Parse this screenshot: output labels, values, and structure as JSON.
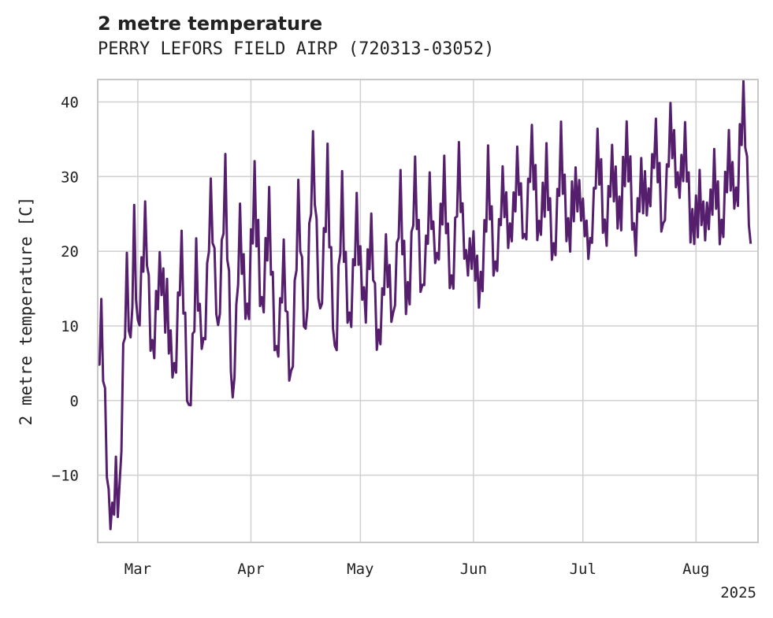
{
  "chart_data": {
    "type": "line",
    "title": "2 metre temperature",
    "subtitle": "PERRY LEFORS FIELD AIRP (720313-03052)",
    "ylabel": "2 metre temperature [C]",
    "xlabel": "",
    "x_range": [
      "2025-02-18",
      "2025-08-18"
    ],
    "ylim": [
      -19,
      43
    ],
    "yticks": [
      -10,
      0,
      10,
      20,
      30,
      40
    ],
    "xticks": [
      {
        "date": "2025-03-01",
        "label": "Mar"
      },
      {
        "date": "2025-04-01",
        "label": "Apr"
      },
      {
        "date": "2025-05-01",
        "label": "May"
      },
      {
        "date": "2025-06-01",
        "label": "Jun"
      },
      {
        "date": "2025-07-01",
        "label": "Jul"
      },
      {
        "date": "2025-08-01",
        "label": "Aug"
      }
    ],
    "year_label": "2025",
    "grid": true,
    "line_color": "#561f6e",
    "series": [
      {
        "x": [
          "2025-02-18",
          "2025-02-19",
          "2025-02-20",
          "2025-02-21",
          "2025-02-22",
          "2025-02-23",
          "2025-02-24",
          "2025-02-25",
          "2025-02-26",
          "2025-02-27",
          "2025-02-28",
          "2025-03-01",
          "2025-03-03",
          "2025-03-05",
          "2025-03-07",
          "2025-03-09",
          "2025-03-11",
          "2025-03-13",
          "2025-03-15",
          "2025-03-17",
          "2025-03-19",
          "2025-03-21",
          "2025-03-23",
          "2025-03-25",
          "2025-03-27",
          "2025-03-29",
          "2025-03-31",
          "2025-04-02",
          "2025-04-04",
          "2025-04-06",
          "2025-04-08",
          "2025-04-10",
          "2025-04-12",
          "2025-04-14",
          "2025-04-16",
          "2025-04-18",
          "2025-04-20",
          "2025-04-22",
          "2025-04-24",
          "2025-04-26",
          "2025-04-28",
          "2025-04-30",
          "2025-05-02",
          "2025-05-04",
          "2025-05-06",
          "2025-05-08",
          "2025-05-10",
          "2025-05-12",
          "2025-05-14",
          "2025-05-16",
          "2025-05-18",
          "2025-05-20",
          "2025-05-22",
          "2025-05-24",
          "2025-05-26",
          "2025-05-28",
          "2025-05-30",
          "2025-06-01",
          "2025-06-03",
          "2025-06-05",
          "2025-06-07",
          "2025-06-09",
          "2025-06-11",
          "2025-06-13",
          "2025-06-15",
          "2025-06-17",
          "2025-06-19",
          "2025-06-21",
          "2025-06-23",
          "2025-06-25",
          "2025-06-27",
          "2025-06-29",
          "2025-07-01",
          "2025-07-03",
          "2025-07-05",
          "2025-07-07",
          "2025-07-09",
          "2025-07-11",
          "2025-07-13",
          "2025-07-15",
          "2025-07-17",
          "2025-07-19",
          "2025-07-21",
          "2025-07-23",
          "2025-07-25",
          "2025-07-27",
          "2025-07-29",
          "2025-07-31",
          "2025-08-02",
          "2025-08-04",
          "2025-08-06",
          "2025-08-08",
          "2025-08-10",
          "2025-08-12",
          "2025-08-14",
          "2025-08-16"
        ],
        "values": [
          2,
          11,
          -1,
          -14,
          -16,
          -9,
          -13,
          5,
          17,
          6,
          24,
          8,
          25,
          5,
          18,
          12,
          3,
          20,
          -3,
          18,
          5,
          28,
          8,
          30,
          -2,
          24,
          10,
          29,
          12,
          26,
          5,
          18,
          1,
          26,
          8,
          34,
          10,
          30,
          5,
          27,
          8,
          24,
          12,
          22,
          6,
          20,
          10,
          28,
          12,
          30,
          14,
          27,
          18,
          29,
          14,
          31,
          18,
          20,
          13,
          31,
          16,
          29,
          21,
          32,
          20,
          35,
          22,
          30,
          19,
          33,
          22,
          29,
          25,
          20,
          34,
          22,
          31,
          24,
          35,
          21,
          30,
          26,
          36,
          22,
          37,
          28,
          34,
          22,
          27,
          23,
          30,
          22,
          33,
          26,
          40,
          21
        ]
      }
    ]
  }
}
